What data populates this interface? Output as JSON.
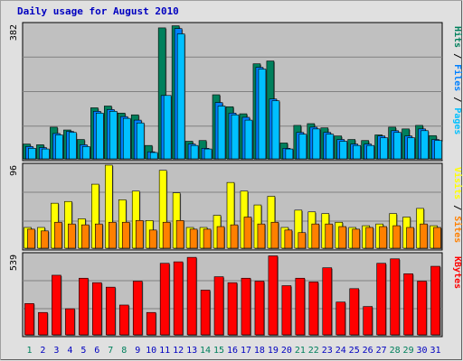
{
  "title": "Daily usage for August 2010",
  "colors": {
    "hits": "#00805c",
    "files": "#0080ff",
    "pages": "#00c0ff",
    "visits": "#ffff00",
    "sites": "#ff8000",
    "kbytes": "#ff0000",
    "weekend_day": "#00805c",
    "weekday": "#0000c0",
    "title": "#0000c0",
    "panel_bg": "#c0c0c0",
    "page_bg": "#e0e0e0"
  },
  "chart_data": [
    {
      "type": "bar",
      "panel": "hits-files-pages",
      "ymax_label": "382",
      "ylim": [
        0,
        382
      ],
      "legend": [
        "Pages",
        "Files",
        "Hits"
      ],
      "categories": [
        "1",
        "2",
        "3",
        "4",
        "5",
        "6",
        "7",
        "8",
        "9",
        "10",
        "11",
        "12",
        "13",
        "14",
        "15",
        "16",
        "17",
        "18",
        "19",
        "20",
        "21",
        "22",
        "23",
        "24",
        "25",
        "26",
        "27",
        "28",
        "29",
        "30",
        "31"
      ],
      "series": [
        {
          "name": "Hits",
          "values": [
            42,
            40,
            90,
            82,
            55,
            145,
            150,
            130,
            125,
            38,
            372,
            378,
            50,
            52,
            182,
            148,
            128,
            270,
            278,
            45,
            95,
            100,
            88,
            65,
            55,
            52,
            68,
            90,
            85,
            95,
            66
          ]
        },
        {
          "name": "Files",
          "values": [
            35,
            32,
            72,
            78,
            40,
            135,
            140,
            120,
            110,
            20,
            180,
            370,
            42,
            30,
            160,
            130,
            118,
            260,
            170,
            30,
            75,
            90,
            75,
            55,
            42,
            42,
            65,
            80,
            65,
            85,
            55
          ]
        },
        {
          "name": "Pages",
          "values": [
            30,
            28,
            68,
            75,
            35,
            130,
            135,
            115,
            102,
            18,
            180,
            355,
            38,
            28,
            150,
            125,
            110,
            255,
            165,
            28,
            70,
            85,
            70,
            50,
            38,
            38,
            60,
            75,
            60,
            80,
            52
          ]
        }
      ]
    },
    {
      "type": "bar",
      "panel": "visits-sites",
      "ymax_label": "96",
      "ylim": [
        0,
        96
      ],
      "legend": [
        "Sites",
        "Visits"
      ],
      "categories": [
        "1",
        "2",
        "3",
        "4",
        "5",
        "6",
        "7",
        "8",
        "9",
        "10",
        "11",
        "12",
        "13",
        "14",
        "15",
        "16",
        "17",
        "18",
        "19",
        "20",
        "21",
        "22",
        "23",
        "24",
        "25",
        "26",
        "27",
        "28",
        "29",
        "30",
        "31"
      ],
      "series": [
        {
          "name": "Visits",
          "values": [
            24,
            24,
            52,
            54,
            34,
            74,
            96,
            56,
            66,
            32,
            90,
            64,
            24,
            24,
            38,
            76,
            66,
            50,
            60,
            24,
            44,
            42,
            40,
            30,
            24,
            26,
            28,
            40,
            36,
            46,
            26
          ]
        },
        {
          "name": "Sites",
          "values": [
            22,
            20,
            30,
            28,
            27,
            28,
            30,
            30,
            32,
            21,
            30,
            32,
            22,
            22,
            25,
            27,
            36,
            28,
            30,
            21,
            18,
            28,
            28,
            25,
            22,
            24,
            25,
            26,
            24,
            28,
            24
          ]
        }
      ]
    },
    {
      "type": "bar",
      "panel": "kbytes",
      "ymax_label": "539",
      "ylim": [
        0,
        539
      ],
      "legend": [
        "KBytes"
      ],
      "categories": [
        "1",
        "2",
        "3",
        "4",
        "5",
        "6",
        "7",
        "8",
        "9",
        "10",
        "11",
        "12",
        "13",
        "14",
        "15",
        "16",
        "17",
        "18",
        "19",
        "20",
        "21",
        "22",
        "23",
        "24",
        "25",
        "26",
        "27",
        "28",
        "29",
        "30",
        "31"
      ],
      "series": [
        {
          "name": "KBytes",
          "values": [
            210,
            150,
            400,
            175,
            380,
            350,
            320,
            200,
            360,
            150,
            480,
            490,
            520,
            300,
            390,
            350,
            380,
            360,
            530,
            330,
            380,
            355,
            450,
            220,
            310,
            190,
            480,
            510,
            410,
            360,
            460
          ]
        }
      ]
    }
  ],
  "weekend_days": [
    "1",
    "7",
    "8",
    "14",
    "15",
    "21",
    "22",
    "28",
    "29"
  ]
}
